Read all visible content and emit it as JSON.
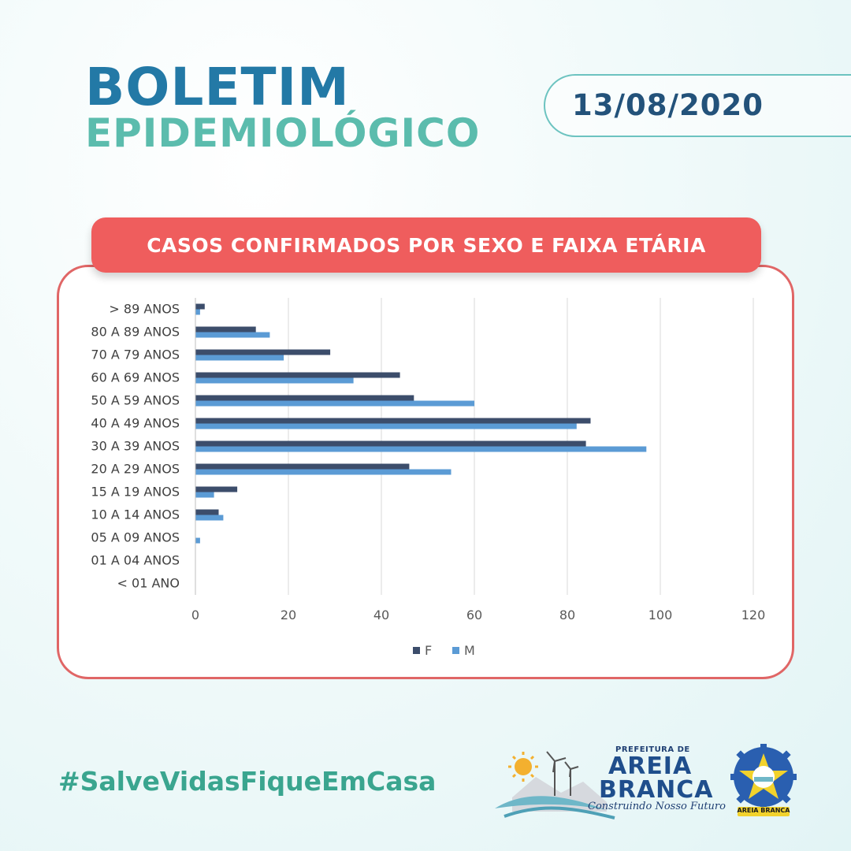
{
  "header": {
    "title_line1": "BOLETIM",
    "title_line2": "EPIDEMIOLÓGICO",
    "date": "13/08/2020"
  },
  "chart_header": "CASOS CONFIRMADOS POR SEXO E FAIXA ETÁRIA",
  "chart_data": {
    "type": "bar",
    "orientation": "horizontal",
    "categories": [
      "> 89 ANOS",
      "80 A 89 ANOS",
      "70 A 79 ANOS",
      "60 A 69 ANOS",
      "50 A 59 ANOS",
      "40 A 49 ANOS",
      "30 A 39 ANOS",
      "20 A 29 ANOS",
      "15 A 19 ANOS",
      "10 A 14 ANOS",
      "05 A 09 ANOS",
      "01 A 04 ANOS",
      "< 01 ANO"
    ],
    "series": [
      {
        "name": "F",
        "color": "#3c4d6b",
        "values": [
          2,
          13,
          29,
          44,
          47,
          85,
          84,
          46,
          9,
          5,
          0,
          0,
          0
        ]
      },
      {
        "name": "M",
        "color": "#5b9bd5",
        "values": [
          1,
          16,
          19,
          34,
          60,
          82,
          97,
          55,
          4,
          6,
          1,
          0,
          0
        ]
      }
    ],
    "xlim": [
      0,
      120
    ],
    "xticks": [
      "0",
      "20",
      "40",
      "60",
      "80",
      "100",
      "120"
    ],
    "grid": true,
    "legend": "bottom",
    "title": "",
    "xlabel": "",
    "ylabel": ""
  },
  "footer": {
    "hashtag": "#SalveVidasFiqueEmCasa",
    "logo_small": "PREFEITURA DE",
    "logo_line1": "AREIA",
    "logo_line2": "BRANCA",
    "logo_slogan": "Construindo Nosso Futuro",
    "seal_label": "AREIA BRANCA"
  }
}
